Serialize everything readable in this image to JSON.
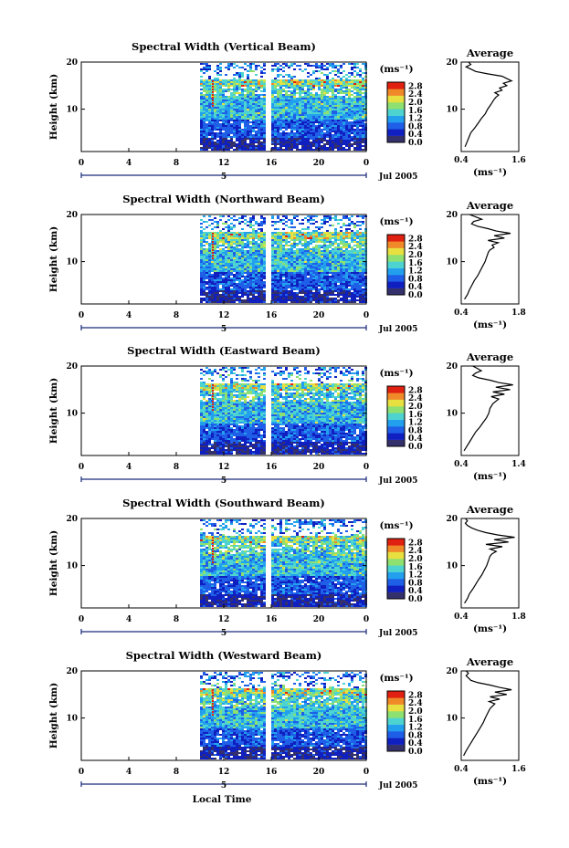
{
  "figure": {
    "xlabel": "Local Time",
    "ylabel": "Height (km)",
    "date_label": "Jul 2005",
    "axis_ticks": [
      "0",
      "4",
      "8",
      "12",
      "16",
      "20",
      "0"
    ],
    "height_ticks": [
      "20",
      "10"
    ],
    "day_mark": "5",
    "colorbar_unit": "(ms⁻¹)",
    "colorbar_ticks": [
      "2.8",
      "2.4",
      "2.0",
      "1.6",
      "1.2",
      "0.8",
      "0.4",
      "0.0"
    ],
    "avg_title": "Average",
    "avg_xlabel": "(ms⁻¹)"
  },
  "colors": {
    "colormap": [
      "#34306c",
      "#1020c0",
      "#1f5fe8",
      "#22a0ee",
      "#4dd4d0",
      "#8ee070",
      "#e8e040",
      "#f08a28",
      "#e02010"
    ]
  },
  "chart_data": [
    {
      "type": "heatmap",
      "title": "Spectral Width (Vertical Beam)",
      "x_range_hours": [
        0,
        24
      ],
      "y_range_km": [
        1,
        20
      ],
      "data_start_hour": 10,
      "gap_hours": [
        15.6,
        15.9
      ],
      "z_range": [
        0.0,
        3.0
      ],
      "avg_profile": {
        "xlim": [
          0.4,
          1.6
        ],
        "xticks": [
          "0.4",
          "1.6"
        ],
        "x": [
          0.48,
          0.52,
          0.56,
          0.6,
          0.68,
          0.75,
          0.82,
          0.9,
          0.95,
          1.02,
          1.08,
          1.12,
          1.18,
          1.1,
          1.25,
          1.2,
          1.35,
          1.28,
          1.45,
          1.35,
          1.25,
          0.95,
          0.7,
          0.6,
          0.5,
          0.6,
          0.55
        ],
        "y": [
          2,
          3,
          4,
          5,
          6,
          7,
          8,
          9,
          10,
          11,
          12,
          12.5,
          13,
          13.5,
          14,
          14.5,
          15,
          15.5,
          16,
          16.5,
          17,
          17.5,
          18,
          18.5,
          19,
          19.5,
          20
        ]
      }
    },
    {
      "type": "heatmap",
      "title": "Spectral Width (Northward Beam)",
      "x_range_hours": [
        0,
        24
      ],
      "y_range_km": [
        1,
        20
      ],
      "data_start_hour": 10,
      "gap_hours": [
        15.6,
        15.9
      ],
      "z_range": [
        0.0,
        3.0
      ],
      "avg_profile": {
        "xlim": [
          0.4,
          1.8
        ],
        "xticks": [
          "0.4",
          "1.8"
        ],
        "x": [
          0.48,
          0.55,
          0.6,
          0.66,
          0.72,
          0.8,
          0.86,
          0.92,
          0.98,
          1.02,
          1.06,
          1.1,
          1.2,
          1.15,
          1.3,
          1.05,
          1.45,
          1.2,
          1.6,
          1.25,
          1.05,
          0.8,
          0.65,
          0.7,
          0.9,
          0.75,
          0.6
        ],
        "y": [
          2,
          3,
          4,
          5,
          6,
          7,
          8,
          9,
          10,
          11,
          12,
          12.5,
          13,
          13.5,
          14,
          14.5,
          15,
          15.5,
          16,
          16.5,
          17,
          17.5,
          18,
          18.5,
          19,
          19.5,
          20
        ]
      }
    },
    {
      "type": "heatmap",
      "title": "Spectral Width (Eastward Beam)",
      "x_range_hours": [
        0,
        24
      ],
      "y_range_km": [
        1,
        20
      ],
      "data_start_hour": 10,
      "gap_hours": [
        15.6,
        15.9
      ],
      "z_range": [
        0.0,
        3.0
      ],
      "avg_profile": {
        "xlim": [
          0.4,
          1.4
        ],
        "xticks": [
          "0.4",
          "1.4"
        ],
        "x": [
          0.45,
          0.5,
          0.55,
          0.6,
          0.65,
          0.72,
          0.78,
          0.84,
          0.88,
          0.9,
          0.95,
          1.0,
          1.05,
          0.92,
          1.15,
          0.95,
          1.25,
          1.0,
          1.3,
          1.05,
          0.9,
          0.7,
          0.6,
          0.65,
          0.75,
          0.68,
          0.6
        ],
        "y": [
          2,
          3,
          4,
          5,
          6,
          7,
          8,
          9,
          10,
          11,
          12,
          12.5,
          13,
          13.5,
          14,
          14.5,
          15,
          15.5,
          16,
          16.5,
          17,
          17.5,
          18,
          18.5,
          19,
          19.5,
          20
        ]
      }
    },
    {
      "type": "heatmap",
      "title": "Spectral Width (Southward Beam)",
      "x_range_hours": [
        0,
        24
      ],
      "y_range_km": [
        1,
        20
      ],
      "data_start_hour": 10,
      "gap_hours": [
        15.6,
        15.9
      ],
      "z_range": [
        0.0,
        3.0
      ],
      "avg_profile": {
        "xlim": [
          0.4,
          1.8
        ],
        "xticks": [
          "0.4",
          "1.8"
        ],
        "x": [
          0.48,
          0.55,
          0.6,
          0.68,
          0.75,
          0.82,
          0.9,
          0.96,
          1.02,
          1.06,
          1.1,
          1.15,
          1.25,
          1.1,
          1.4,
          1.0,
          1.55,
          1.2,
          1.7,
          1.3,
          1.0,
          0.8,
          0.65,
          0.55,
          0.5,
          0.55,
          0.5
        ],
        "y": [
          2,
          3,
          4,
          5,
          6,
          7,
          8,
          9,
          10,
          11,
          12,
          12.5,
          13,
          13.5,
          14,
          14.5,
          15,
          15.5,
          16,
          16.5,
          17,
          17.5,
          18,
          18.5,
          19,
          19.5,
          20
        ]
      }
    },
    {
      "type": "heatmap",
      "title": "Spectral Width (Westward Beam)",
      "x_range_hours": [
        0,
        24
      ],
      "y_range_km": [
        1,
        20
      ],
      "data_start_hour": 10,
      "gap_hours": [
        15.6,
        15.9
      ],
      "z_range": [
        0.0,
        3.0
      ],
      "avg_profile": {
        "xlim": [
          0.4,
          1.6
        ],
        "xticks": [
          "0.4",
          "1.6"
        ],
        "x": [
          0.45,
          0.5,
          0.56,
          0.62,
          0.68,
          0.74,
          0.8,
          0.86,
          0.9,
          0.95,
          1.0,
          1.05,
          1.1,
          0.98,
          1.2,
          1.0,
          1.35,
          1.1,
          1.45,
          1.2,
          1.0,
          0.75,
          0.6,
          0.55,
          0.5,
          0.55,
          0.5
        ],
        "y": [
          2,
          3,
          4,
          5,
          6,
          7,
          8,
          9,
          10,
          11,
          12,
          12.5,
          13,
          13.5,
          14,
          14.5,
          15,
          15.5,
          16,
          16.5,
          17,
          17.5,
          18,
          18.5,
          19,
          19.5,
          20
        ]
      }
    }
  ]
}
